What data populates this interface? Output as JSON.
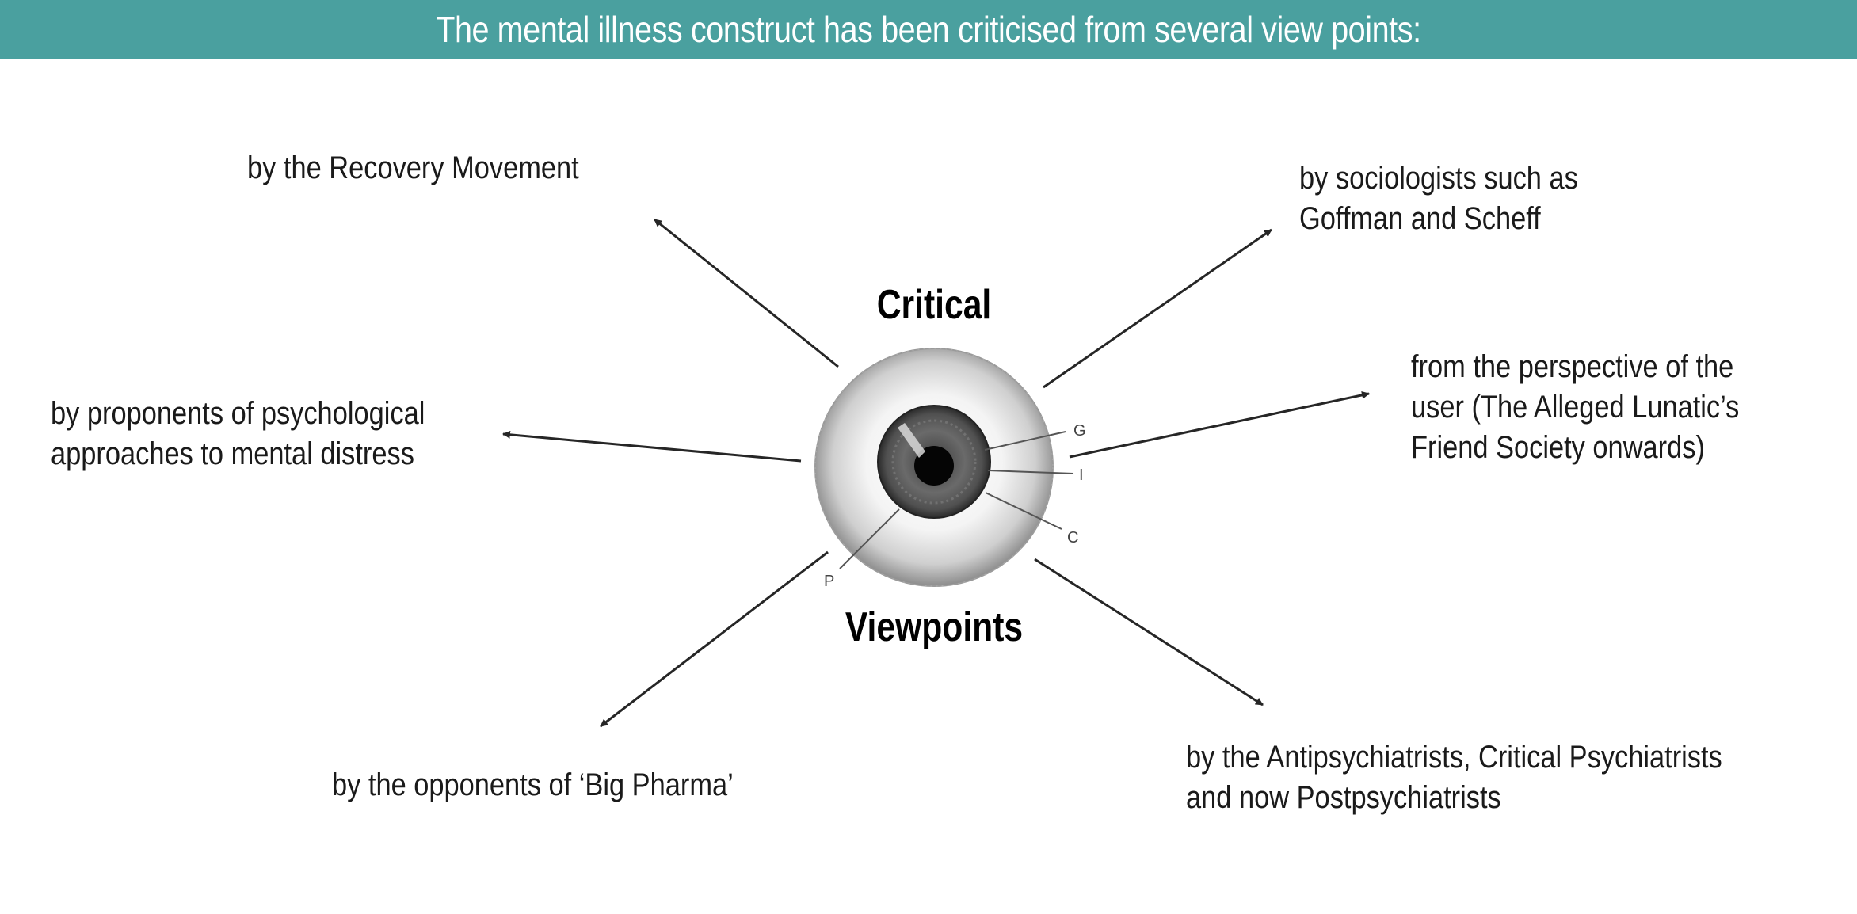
{
  "title": "The mental illness construct has been criticised from several view points:",
  "center": {
    "top": "Critical",
    "bottom": "Viewpoints"
  },
  "eye_letters": [
    "G",
    "I",
    "C",
    "P"
  ],
  "viewpoints": [
    {
      "text": "by the Recovery Movement"
    },
    {
      "text": "by proponents of psychological\napproaches to mental distress"
    },
    {
      "text": "by the opponents of ‘Big Pharma’"
    },
    {
      "text": "by sociologists such as\nGoffman and Scheff"
    },
    {
      "text": "from the perspective of the\nuser (The Alleged Lunatic’s\nFriend Society onwards)"
    },
    {
      "text": "by the Antipsychiatrists, Critical Psychiatrists\nand now Postpsychiatrists"
    }
  ],
  "colors": {
    "banner": "#4aa09f",
    "arrow": "#262626",
    "text": "#1a1a1a"
  }
}
